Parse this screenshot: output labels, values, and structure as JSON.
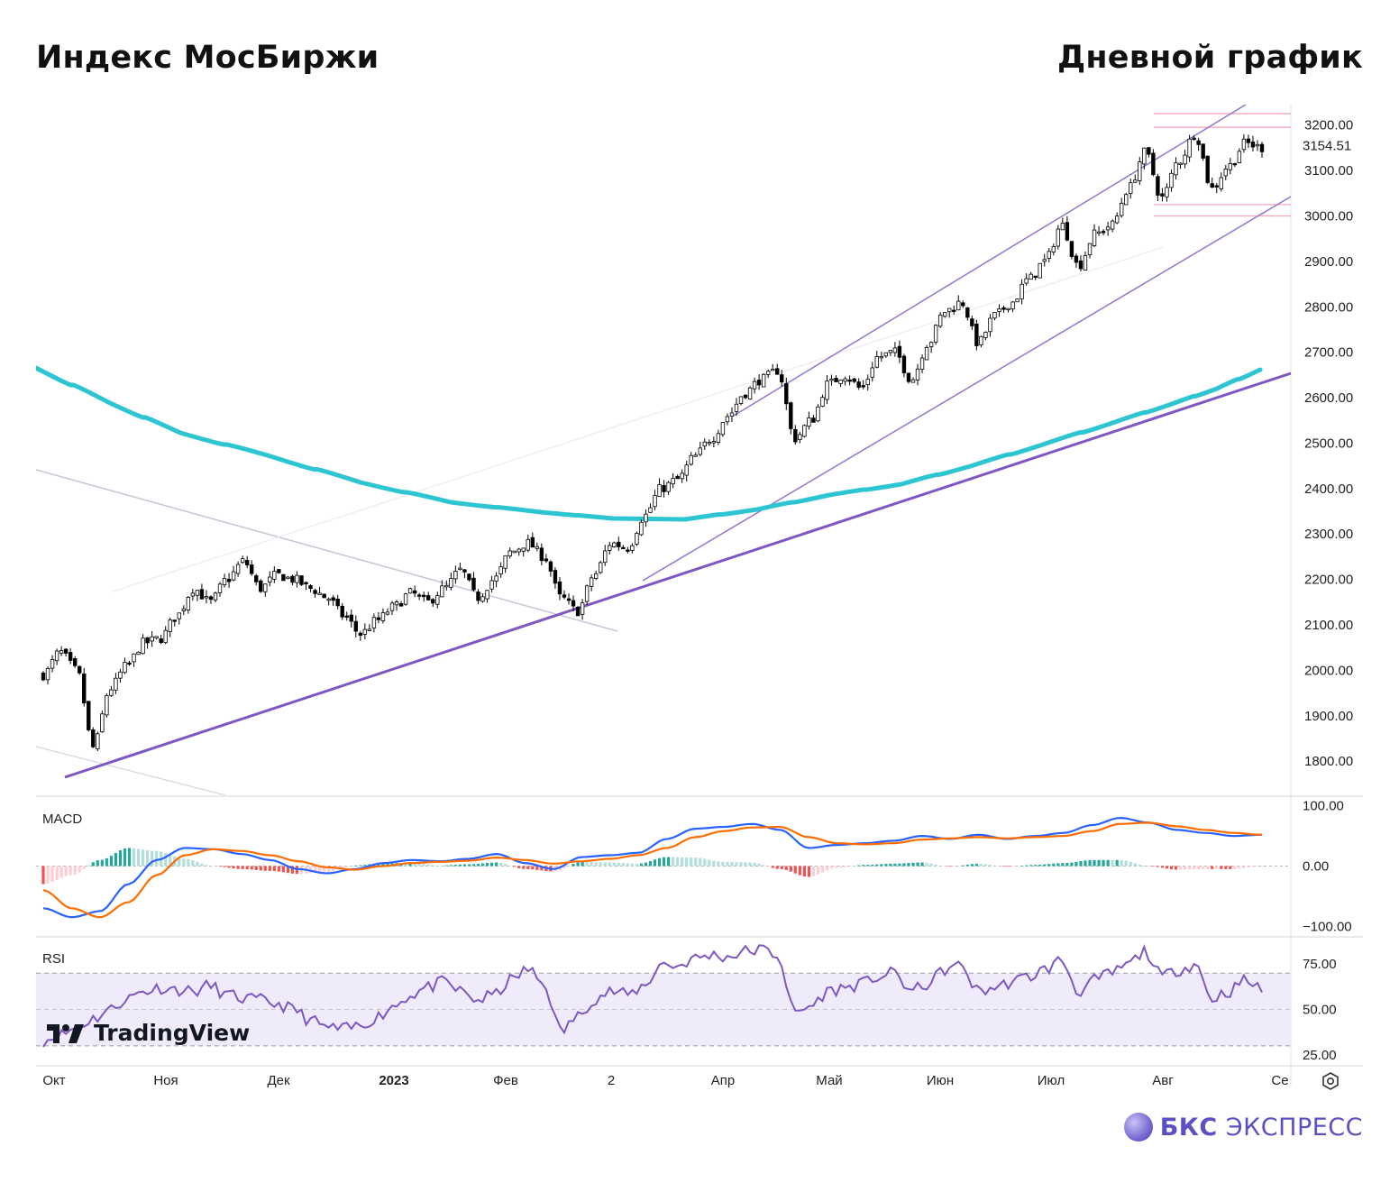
{
  "header": {
    "title_left": "Индекс МосБиржи",
    "title_right": "Дневной график"
  },
  "watermark": "TradingView",
  "brand": {
    "bold": "БКС",
    "light": "ЭКСПРЕСС"
  },
  "chart_data": {
    "type": "candlestick",
    "instrument": "Индекс МосБиржи",
    "timeframe": "Дневной график",
    "price_axis": {
      "ticks": [
        "3200.00",
        "3100.00",
        "3000.00",
        "2900.00",
        "2800.00",
        "2700.00",
        "2600.00",
        "2500.00",
        "2400.00",
        "2300.00",
        "2200.00",
        "2100.00",
        "2000.00",
        "1900.00",
        "1800.00"
      ],
      "range": [
        1725,
        3245
      ],
      "last_price": "3154.51"
    },
    "x_axis": {
      "ticks": [
        "Окт",
        "Ноя",
        "Дек",
        "2023",
        "Фев",
        "2",
        "Апр",
        "Май",
        "Июн",
        "Июл",
        "Авг",
        "Се"
      ]
    },
    "close_path": [
      1990,
      2040,
      2000,
      1830,
      1960,
      2010,
      2060,
      2070,
      2120,
      2180,
      2150,
      2200,
      2240,
      2180,
      2210,
      2200,
      2180,
      2160,
      2120,
      2080,
      2110,
      2140,
      2170,
      2150,
      2180,
      2220,
      2160,
      2200,
      2260,
      2280,
      2250,
      2160,
      2130,
      2210,
      2280,
      2270,
      2340,
      2400,
      2420,
      2470,
      2510,
      2560,
      2610,
      2640,
      2660,
      2510,
      2550,
      2630,
      2650,
      2620,
      2690,
      2700,
      2640,
      2720,
      2790,
      2810,
      2720,
      2780,
      2810,
      2860,
      2900,
      2980,
      2890,
      2960,
      2980,
      3060,
      3140,
      3040,
      3120,
      3180,
      3060,
      3110,
      3160,
      3150
    ],
    "moving_average_label": "",
    "horizontal_levels": [
      3225,
      3195,
      3025,
      3000
    ],
    "series": [
      {
        "name": "",
        "kind": "moving_average",
        "color": "#2ec5d3"
      },
      {
        "name": "",
        "kind": "trendline",
        "color": "#7e57c2"
      },
      {
        "name": "",
        "kind": "channel",
        "color": "#9575cd"
      }
    ],
    "macd": {
      "label": "MACD",
      "ticks": [
        "100.00",
        "0.00",
        "-100.00"
      ],
      "range": [
        -110,
        110
      ],
      "macd_line_color": "#2962ff",
      "signal_line_color": "#ff6d00",
      "hist_pos_color": "#26a69a",
      "hist_neg_color": "#ef5350"
    },
    "rsi": {
      "label": "RSI",
      "ticks": [
        "75.00",
        "50.00",
        "25.00"
      ],
      "range": [
        20,
        88
      ],
      "upper_band": 70,
      "lower_band": 30,
      "line_color": "#7e57c2",
      "values": [
        33,
        36,
        40,
        45,
        50,
        56,
        60,
        62,
        61,
        60,
        63,
        58,
        56,
        55,
        53,
        50,
        44,
        40,
        39,
        41,
        46,
        52,
        58,
        62,
        65,
        60,
        55,
        58,
        66,
        72,
        64,
        38,
        46,
        56,
        60,
        58,
        63,
        75,
        74,
        78,
        80,
        79,
        82,
        83,
        80,
        48,
        52,
        60,
        62,
        64,
        68,
        70,
        60,
        64,
        72,
        74,
        60,
        62,
        65,
        68,
        72,
        77,
        60,
        66,
        70,
        75,
        82,
        68,
        72,
        75,
        56,
        60,
        66,
        61
      ]
    }
  }
}
